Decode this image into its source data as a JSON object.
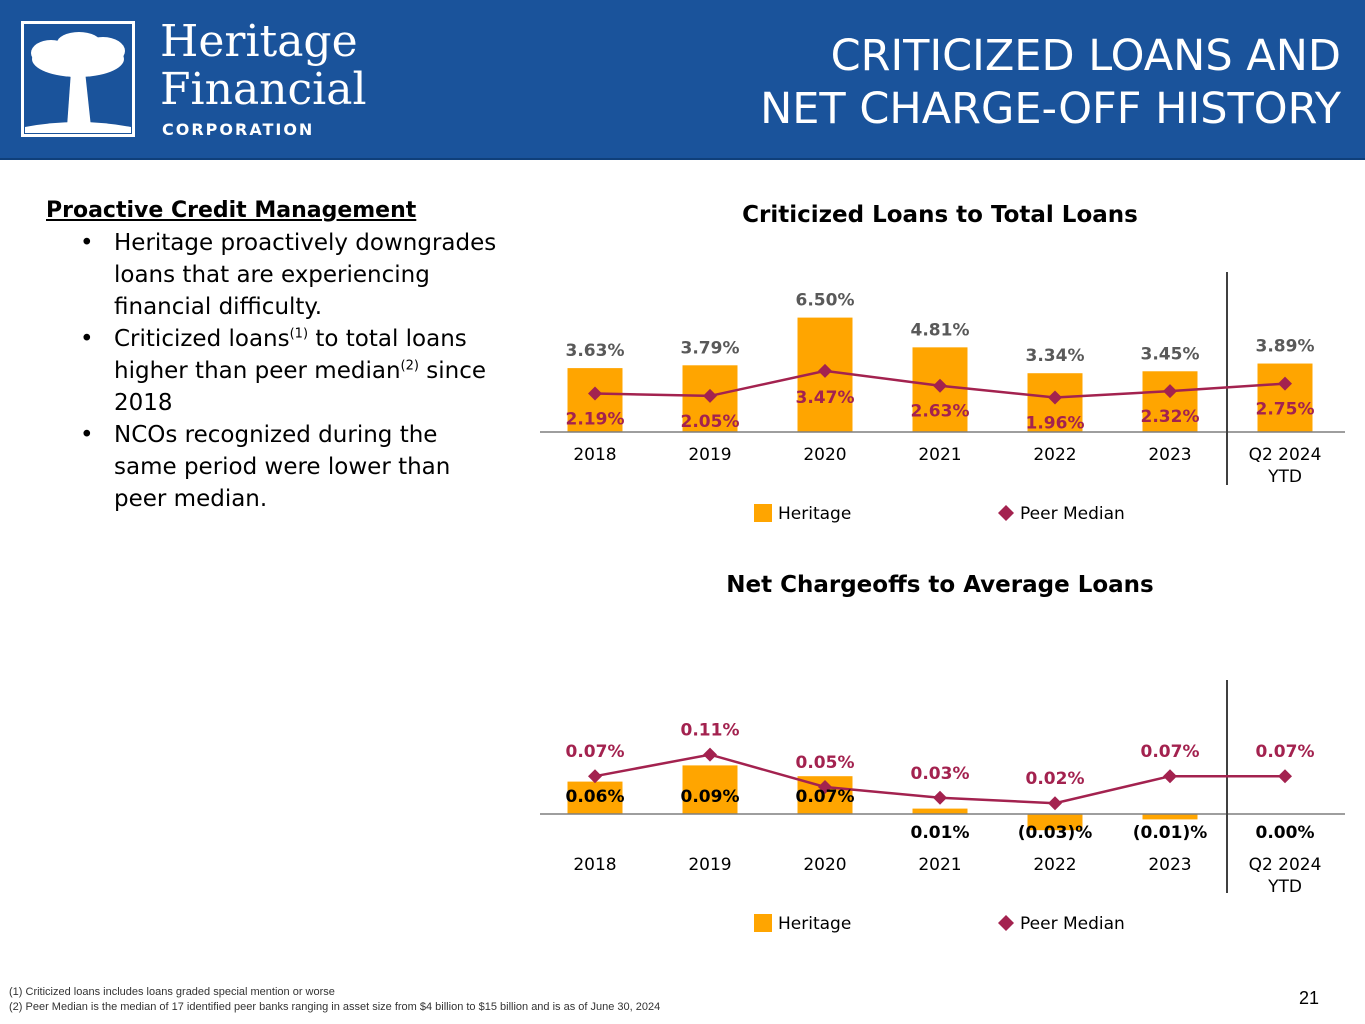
{
  "header": {
    "logo_name_line1": "Heritage",
    "logo_name_line2": "Financial",
    "logo_sub": "CORPORATION",
    "title_line1": "CRITICIZED LOANS AND",
    "title_line2": "NET CHARGE-OFF HISTORY",
    "bg_color": "#1a539b"
  },
  "left": {
    "heading": "Proactive Credit Management",
    "bullet1": "Heritage proactively downgrades loans that are experiencing financial difficulty.",
    "bullet2_a": "Criticized loans",
    "bullet2_sup1": "(1)",
    "bullet2_b": " to total loans higher than peer median",
    "bullet2_sup2": "(2)",
    "bullet2_c": " since 2018",
    "bullet3": "NCOs recognized during the same period were lower than peer median."
  },
  "footnotes": {
    "note1": "(1) Criticized loans includes loans graded special mention or worse",
    "note2": "(2) Peer Median is the median of 17 identified peer banks ranging in asset size from $4 billion to $15 billion and is as of June 30, 2024"
  },
  "page_number": "21",
  "colors": {
    "bar": "#ffa500",
    "peer": "#a3224f",
    "label_gray": "#595959"
  },
  "chart_data": [
    {
      "type": "bar",
      "title": "Criticized Loans to Total Loans",
      "categories": [
        "2018",
        "2019",
        "2020",
        "2021",
        "2022",
        "2023",
        "Q2 2024 YTD"
      ],
      "series": [
        {
          "name": "Heritage",
          "kind": "bar",
          "values": [
            3.63,
            3.79,
            6.5,
            4.81,
            3.34,
            3.45,
            3.89
          ],
          "labels": [
            "3.63%",
            "3.79%",
            "6.50%",
            "4.81%",
            "3.34%",
            "3.45%",
            "3.89%"
          ]
        },
        {
          "name": "Peer Median",
          "kind": "line",
          "values": [
            2.19,
            2.05,
            3.47,
            2.63,
            1.96,
            2.32,
            2.75
          ],
          "labels": [
            "2.19%",
            "2.05%",
            "3.47%",
            "2.63%",
            "1.96%",
            "2.32%",
            "2.75%"
          ]
        }
      ],
      "legend": "bottom"
    },
    {
      "type": "bar",
      "title": "Net Chargeoffs to Average Loans",
      "categories": [
        "2018",
        "2019",
        "2020",
        "2021",
        "2022",
        "2023",
        "Q2 2024 YTD"
      ],
      "series": [
        {
          "name": "Heritage",
          "kind": "bar",
          "values": [
            0.06,
            0.09,
            0.07,
            0.01,
            -0.03,
            -0.01,
            0.0
          ],
          "labels": [
            "0.06%",
            "0.09%",
            "0.07%",
            "0.01%",
            "(0.03)%",
            "(0.01)%",
            "0.00%"
          ]
        },
        {
          "name": "Peer Median",
          "kind": "line",
          "values": [
            0.07,
            0.11,
            0.05,
            0.03,
            0.02,
            0.07,
            0.07
          ],
          "labels": [
            "0.07%",
            "0.11%",
            "0.05%",
            "0.03%",
            "0.02%",
            "0.07%",
            "0.07%"
          ]
        }
      ],
      "legend": "bottom"
    }
  ]
}
